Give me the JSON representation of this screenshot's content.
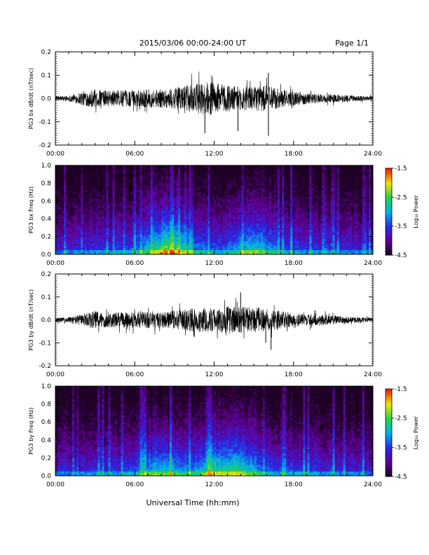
{
  "header": {
    "title": "2015/03/06  00:00-24:00 UT",
    "page": "Page 1/1"
  },
  "x_axis": {
    "ticks": [
      "00:00",
      "06:00",
      "12:00",
      "18:00",
      "24:00"
    ],
    "label": "Universal Time (hh:mm)"
  },
  "colorbar": {
    "ticks": [
      "-1.5",
      "-2.5",
      "-3.5",
      "-4.5"
    ],
    "label": "Log₁₀ Power"
  },
  "colors": {
    "background": "#ffffff",
    "trace": "#000000"
  },
  "chart_data": [
    {
      "type": "line",
      "ylabel": "PG3 bx dB/dt (nT/sec)",
      "xlim": [
        0,
        24
      ],
      "ylim": [
        -0.2,
        0.2
      ],
      "yticks": [
        "0.2",
        "0.1",
        "0.0",
        "-0.1",
        "-0.2"
      ],
      "series": [
        {
          "envelope_hours": [
            0,
            1,
            2,
            3,
            4,
            5,
            6,
            7,
            8,
            9,
            10,
            11,
            12,
            13,
            14,
            15,
            16,
            17,
            18,
            19,
            20,
            21,
            22,
            23,
            24
          ],
          "envelope_amplitude": [
            0.01,
            0.012,
            0.03,
            0.04,
            0.035,
            0.035,
            0.035,
            0.04,
            0.04,
            0.045,
            0.055,
            0.07,
            0.07,
            0.06,
            0.05,
            0.05,
            0.06,
            0.04,
            0.03,
            0.025,
            0.02,
            0.018,
            0.015,
            0.012,
            0.01
          ],
          "spikes": [
            {
              "hour": 16.1,
              "value": 0.11
            },
            {
              "hour": 16.1,
              "value": -0.16
            },
            {
              "hour": 11.3,
              "value": -0.15
            },
            {
              "hour": 13.8,
              "value": -0.14
            }
          ]
        }
      ]
    },
    {
      "type": "heatmap",
      "ylabel": "PG3 bx Freq (Hz)",
      "xlim": [
        0,
        24
      ],
      "ylim": [
        0.0,
        1.0
      ],
      "yticks": [
        "1.0",
        "0.8",
        "0.6",
        "0.4",
        "0.2",
        "0.0"
      ],
      "zlim": [
        -4.5,
        -1.5
      ],
      "zlabel": "Log10 Power",
      "low_freq_peak_hours": [
        8.0,
        9.0,
        15.0
      ]
    },
    {
      "type": "line",
      "ylabel": "PG3 by dB/dt (nT/sec)",
      "xlim": [
        0,
        24
      ],
      "ylim": [
        -0.2,
        0.2
      ],
      "yticks": [
        "0.2",
        "0.1",
        "0.0",
        "-0.1",
        "-0.2"
      ],
      "series": [
        {
          "envelope_hours": [
            0,
            1,
            2,
            3,
            4,
            5,
            6,
            7,
            8,
            9,
            10,
            11,
            12,
            13,
            14,
            15,
            16,
            17,
            18,
            19,
            20,
            21,
            22,
            23,
            24
          ],
          "envelope_amplitude": [
            0.01,
            0.012,
            0.025,
            0.04,
            0.035,
            0.035,
            0.035,
            0.04,
            0.035,
            0.04,
            0.05,
            0.055,
            0.05,
            0.06,
            0.06,
            0.055,
            0.05,
            0.04,
            0.03,
            0.025,
            0.025,
            0.02,
            0.015,
            0.012,
            0.01
          ],
          "spikes": [
            {
              "hour": 14.0,
              "value": 0.12
            },
            {
              "hour": 16.3,
              "value": -0.13
            },
            {
              "hour": 15.9,
              "value": -0.1
            },
            {
              "hour": 10.5,
              "value": -0.075
            }
          ]
        }
      ]
    },
    {
      "type": "heatmap",
      "ylabel": "PG3 by Freq (Hz)",
      "xlim": [
        0,
        24
      ],
      "ylim": [
        0.0,
        1.0
      ],
      "yticks": [
        "1.0",
        "0.8",
        "0.6",
        "0.4",
        "0.2",
        "0.0"
      ],
      "zlim": [
        -4.5,
        -1.5
      ],
      "zlabel": "Log10 Power",
      "low_freq_peak_hours": [
        8.0,
        12.0,
        14.0
      ]
    }
  ]
}
